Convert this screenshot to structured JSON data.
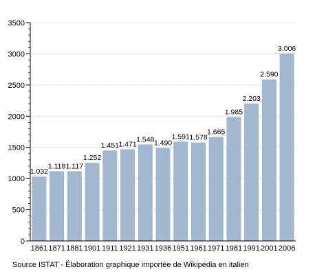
{
  "chart_data": {
    "type": "bar",
    "categories": [
      "1861",
      "1871",
      "1881",
      "1901",
      "1911",
      "1921",
      "1931",
      "1936",
      "1951",
      "1961",
      "1971",
      "1981",
      "1991",
      "2001",
      "2006"
    ],
    "values": [
      1032,
      1118,
      1117,
      1252,
      1451,
      1471,
      1548,
      1490,
      1591,
      1578,
      1665,
      1985,
      2203,
      2590,
      3006
    ],
    "data_labels": [
      "1.032",
      "1.118",
      "1.117",
      "1.252",
      "1.451",
      "1.471",
      "1.548",
      "1.490",
      "1.591",
      "1.578",
      "1.665",
      "1.985",
      "2.203",
      "2.590",
      "3.006"
    ],
    "ylim": [
      0,
      3500
    ],
    "yticks": [
      0,
      500,
      1000,
      1500,
      2000,
      2500,
      3000,
      3500
    ],
    "ytick_labels": [
      "0",
      "500",
      "1000",
      "1500",
      "2000",
      "2500",
      "3000",
      "3500"
    ],
    "grid": true,
    "title": "",
    "xlabel": "",
    "ylabel": ""
  },
  "colors": {
    "bar": "#a2b8cf",
    "grid": "#c8c8c8",
    "axis": "#000000"
  },
  "source_text": "Source ISTAT - Élaboration graphique importée de Wikipédia en italien"
}
